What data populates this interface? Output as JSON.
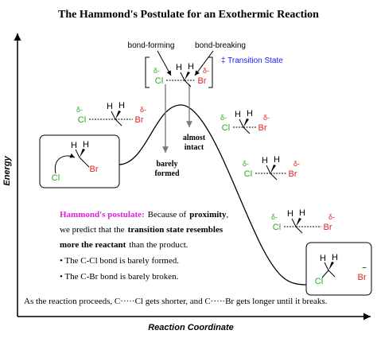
{
  "title": "The Hammond's Postulate for an Exothermic Reaction",
  "axes": {
    "y_label": "Energy",
    "x_label": "Reaction Coordinate"
  },
  "transition_state": {
    "bond_forming": "bond-forming",
    "bond_breaking": "bond-breaking",
    "legend": "‡ Transition State"
  },
  "annotations": {
    "almost_intact": [
      "almost",
      "intact"
    ],
    "barely_formed": [
      "barely",
      "formed"
    ]
  },
  "hammond": {
    "line1": [
      "Hammond's postulate:",
      "Because of",
      "proximity",
      ","
    ],
    "line2": [
      "we predict that the",
      "transition state resembles"
    ],
    "line3": [
      "more the reactant",
      "than the product."
    ],
    "bullets": [
      "• The C-Cl bond is barely formed.",
      "• The C-Br bond is barely broken."
    ]
  },
  "footer": "As the reaction proceeds, C·····Cl gets shorter, and C·····Br gets longer until it breaks.",
  "molecules": [
    {
      "h1": "H",
      "h2": "H",
      "cl": "Cl",
      "br": "Br"
    },
    {
      "delta_cl": "δ-",
      "cl": "Cl",
      "h1": "H",
      "h2": "H",
      "delta_br": "δ-",
      "br": "Br"
    },
    {
      "delta_cl": "δ-",
      "cl": "Cl",
      "h1": "H",
      "h2": "H",
      "delta_br": "δ-",
      "br": "Br"
    },
    {
      "delta_cl": "δ-",
      "cl": "Cl",
      "h1": "H",
      "h2": "H",
      "delta_br": "δ-",
      "br": "Br"
    },
    {
      "delta_cl": "δ-",
      "cl": "Cl",
      "h1": "H",
      "h2": "H",
      "delta_br": "δ-",
      "br": "Br"
    },
    {
      "delta_cl": "δ-",
      "cl": "Cl",
      "h1": "H",
      "h2": "H",
      "delta_br": "δ-",
      "br": "Br"
    },
    {
      "h1": "H",
      "h2": "H",
      "cl": "Cl",
      "br": "Br",
      "charge": "−"
    }
  ]
}
